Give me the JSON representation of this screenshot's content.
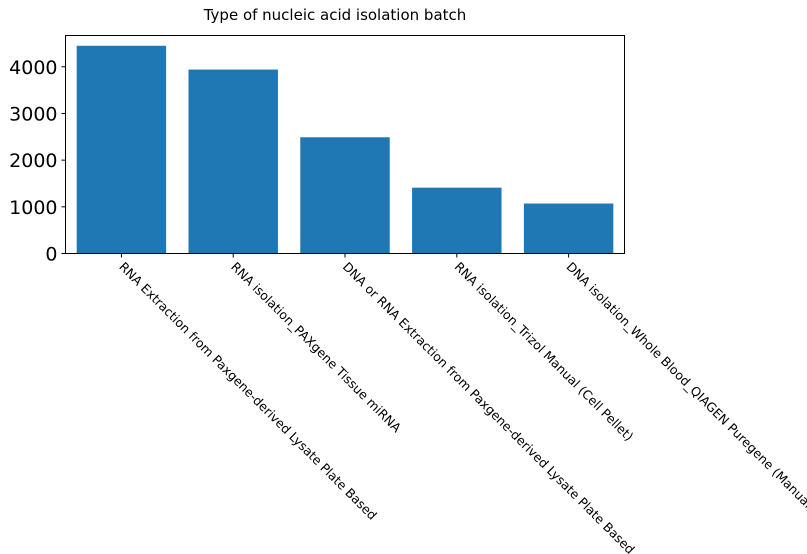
{
  "chart_data": {
    "type": "bar",
    "title": "Type of nucleic acid isolation batch",
    "xlabel": "",
    "ylabel": "",
    "categories": [
      "RNA Extraction from Paxgene-derived Lysate Plate Based",
      "RNA isolation_PAXgene Tissue miRNA",
      "DNA or RNA Extraction from Paxgene-derived Lysate Plate Based",
      "RNA isolation_Trizol Manual (Cell Pellet)",
      "DNA isolation_Whole Blood_QIAGEN Puregene (Manual)"
    ],
    "values": [
      4450,
      3940,
      2490,
      1410,
      1070
    ],
    "ylim": [
      0,
      4670
    ],
    "yticks": [
      0,
      1000,
      2000,
      3000,
      4000
    ],
    "ytick_labels": [
      "0",
      "1000",
      "2000",
      "3000",
      "4000"
    ],
    "x_tick_rotation": "-45 degrees",
    "grid": false,
    "legend": "none",
    "bar_color": "#1f77b4"
  }
}
